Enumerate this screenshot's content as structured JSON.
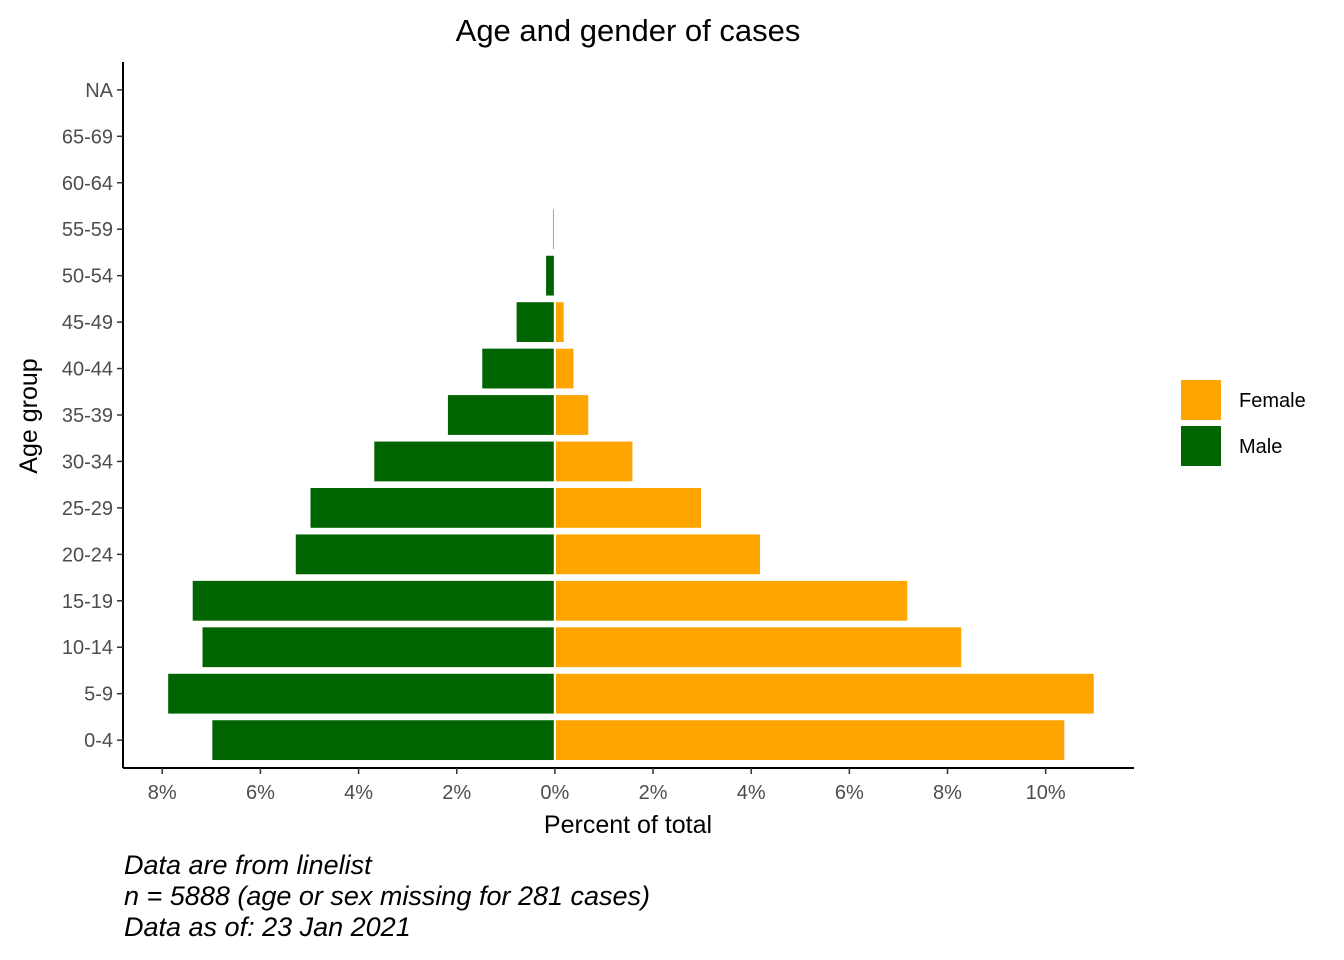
{
  "chart_data": {
    "type": "bar",
    "orientation": "horizontal-pyramid",
    "title": "Age and gender of cases",
    "xlabel": "Percent of total",
    "ylabel": "Age group",
    "categories": [
      "0-4",
      "5-9",
      "10-14",
      "15-19",
      "20-24",
      "25-29",
      "30-34",
      "35-39",
      "40-44",
      "45-49",
      "50-54",
      "55-59",
      "60-64",
      "65-69",
      "NA"
    ],
    "series": [
      {
        "name": "Female",
        "color": "#FFA500",
        "values": [
          10.4,
          11.0,
          8.3,
          7.2,
          4.2,
          3.0,
          1.6,
          0.7,
          0.4,
          0.2,
          0,
          0,
          0,
          0,
          0
        ]
      },
      {
        "name": "Male",
        "color": "#006400",
        "values": [
          7.0,
          7.9,
          7.2,
          7.4,
          5.3,
          5.0,
          3.7,
          2.2,
          1.5,
          0.8,
          0.2,
          0.05,
          0,
          0,
          0
        ]
      }
    ],
    "xlim": [
      -8.8,
      11.8
    ],
    "xticks": [
      -8,
      -6,
      -4,
      -2,
      0,
      2,
      4,
      6,
      8,
      10
    ],
    "xtick_labels": [
      "8%",
      "6%",
      "4%",
      "2%",
      "0%",
      "2%",
      "4%",
      "6%",
      "8%",
      "10%"
    ],
    "legend": {
      "position": "right",
      "entries": [
        "Female",
        "Male"
      ]
    },
    "grid": false
  },
  "caption": {
    "line1": "Data are from linelist",
    "line2": "n = 5888 (age or sex missing for 281 cases)",
    "line3": "Data as of: 23 Jan 2021"
  }
}
